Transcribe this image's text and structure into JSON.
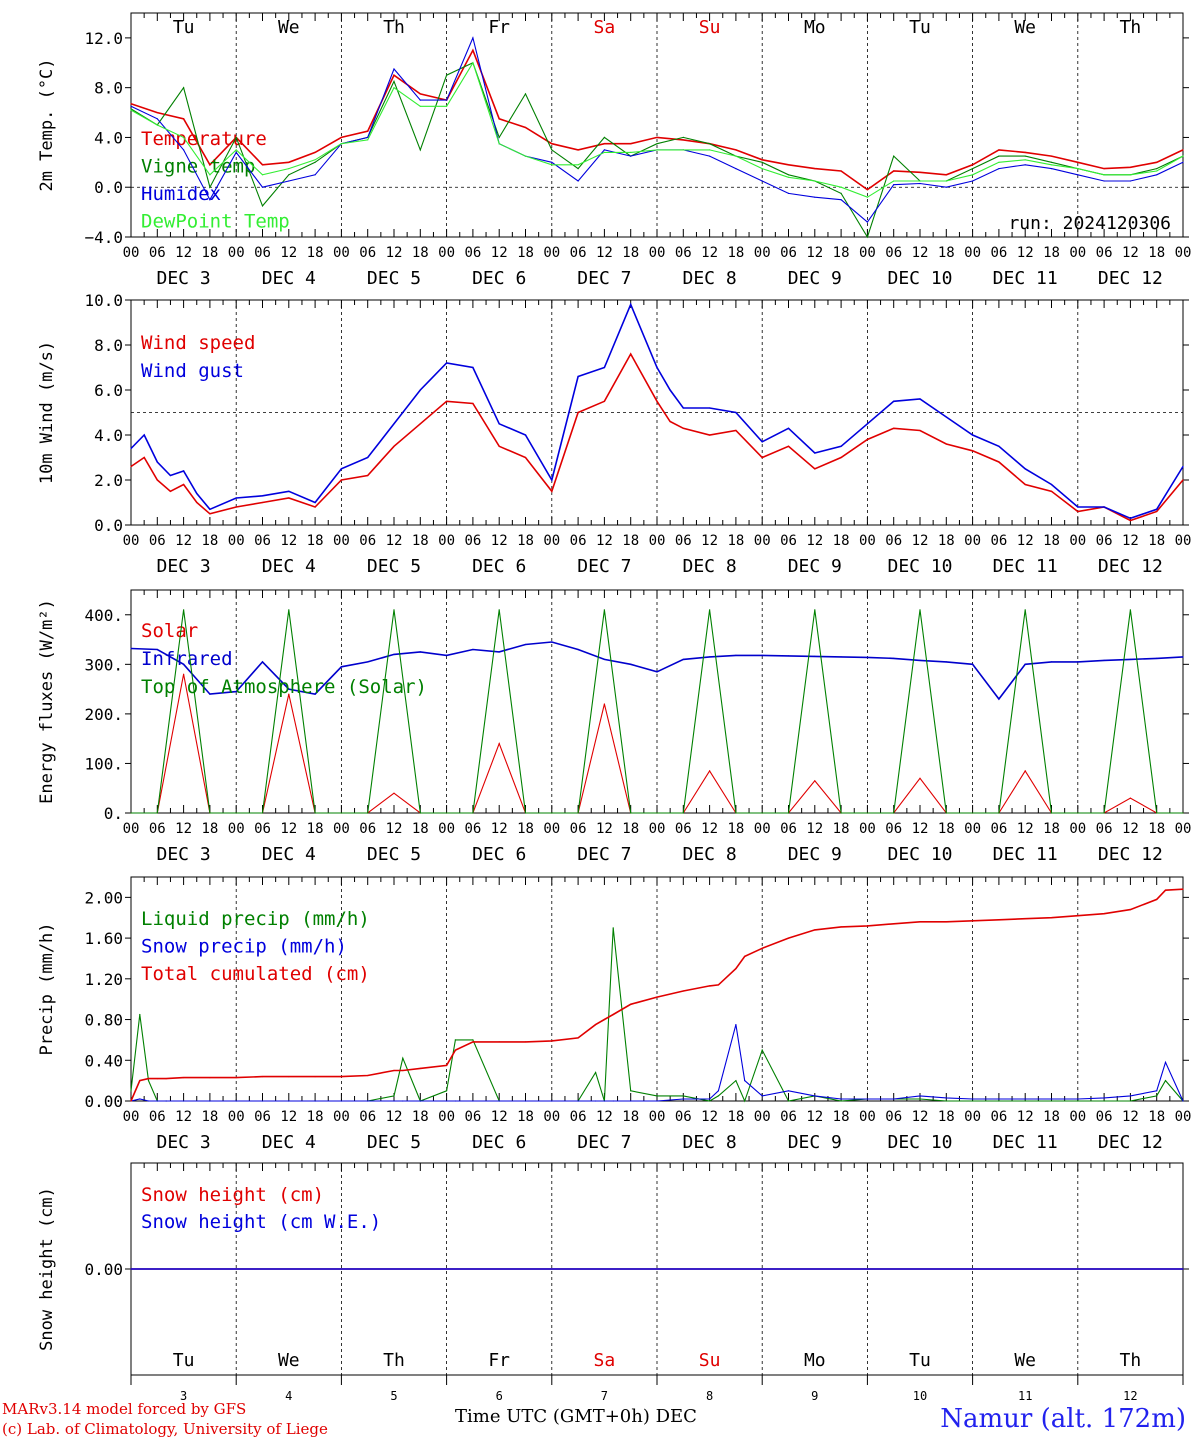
{
  "footer": {
    "model_line": "MARv3.14 model forced by GFS",
    "credit_line": "(c) Lab. of Climatology, University of Liege",
    "x_title": "Time UTC (GMT+0h)",
    "x_unit": "DEC",
    "location": "Namur (alt. 172m)"
  },
  "run_label": "run: 2024120306",
  "days": [
    "Tu",
    "We",
    "Th",
    "Fr",
    "Sa",
    "Su",
    "Mo",
    "Tu",
    "We",
    "Th"
  ],
  "weekend_color": "#e00000",
  "date_labels": [
    "DEC  3",
    "DEC  4",
    "DEC  5",
    "DEC  6",
    "DEC  7",
    "DEC  8",
    "DEC  9",
    "DEC 10",
    "DEC 11",
    "DEC 12"
  ],
  "day_numbers": [
    "3",
    "4",
    "5",
    "6",
    "7",
    "8",
    "9",
    "10",
    "11",
    "12"
  ],
  "hour_ticks": [
    "00",
    "06",
    "12",
    "18"
  ],
  "chart_data": [
    {
      "type": "line",
      "ylabel": "2m Temp. (°C)",
      "ylim": [
        -4,
        14
      ],
      "yticks": [
        -4,
        0,
        4,
        8,
        12
      ],
      "ytick_labels": [
        "−4.0",
        "0.0",
        "4.0",
        "8.0",
        "12.0"
      ],
      "ref_line": 0,
      "x_hours": [
        0,
        6,
        12,
        18,
        24,
        30,
        36,
        42,
        48,
        54,
        60,
        66,
        72,
        78,
        84,
        90,
        96,
        102,
        108,
        114,
        120,
        126,
        132,
        138,
        144,
        150,
        156,
        162,
        168,
        174,
        180,
        186,
        192,
        198,
        204,
        210,
        216,
        222,
        228,
        234,
        240
      ],
      "series": [
        {
          "name": "Temperature",
          "color": "#e00000",
          "values": [
            6.7,
            6.0,
            5.5,
            1.8,
            4.0,
            1.8,
            2.0,
            2.8,
            4.0,
            4.5,
            9.0,
            7.5,
            7.0,
            11.0,
            5.5,
            4.8,
            3.5,
            3.0,
            3.5,
            3.5,
            4.0,
            3.8,
            3.5,
            3.0,
            2.2,
            1.8,
            1.5,
            1.3,
            -0.2,
            1.3,
            1.2,
            1.0,
            1.8,
            3.0,
            2.8,
            2.5,
            2.0,
            1.5,
            1.6,
            2.0,
            3.0
          ]
        },
        {
          "name": "Vigne temp",
          "color": "#008000",
          "values": [
            6.3,
            5.0,
            8.0,
            0.0,
            4.0,
            -1.5,
            1.0,
            2.0,
            3.5,
            4.0,
            8.5,
            3.0,
            9.0,
            10.0,
            4.0,
            7.5,
            3.0,
            1.5,
            4.0,
            2.5,
            3.5,
            4.0,
            3.5,
            2.5,
            2.0,
            1.0,
            0.5,
            -0.5,
            -4.0,
            2.5,
            0.5,
            0.5,
            1.5,
            2.5,
            2.5,
            2.0,
            1.5,
            1.0,
            1.0,
            1.5,
            2.5
          ]
        },
        {
          "name": "Humidex",
          "color": "#0000dd",
          "values": [
            6.5,
            5.5,
            3.0,
            -1.0,
            2.8,
            0.0,
            0.5,
            1.0,
            3.5,
            4.0,
            9.5,
            7.0,
            7.0,
            12.0,
            3.5,
            2.5,
            2.0,
            0.5,
            3.0,
            2.5,
            3.0,
            3.0,
            2.5,
            1.5,
            0.5,
            -0.5,
            -0.8,
            -1.0,
            -2.8,
            0.2,
            0.3,
            0.0,
            0.5,
            1.5,
            1.8,
            1.5,
            1.0,
            0.5,
            0.5,
            1.0,
            2.0
          ]
        },
        {
          "name": "DewPoint Temp",
          "color": "#33ee33",
          "values": [
            6.2,
            5.0,
            4.0,
            1.0,
            3.0,
            1.0,
            1.5,
            2.2,
            3.5,
            3.8,
            8.0,
            6.5,
            6.5,
            10.0,
            3.5,
            2.5,
            1.8,
            1.8,
            2.8,
            2.8,
            3.0,
            3.0,
            3.0,
            2.5,
            1.5,
            0.8,
            0.5,
            0.0,
            -0.8,
            0.5,
            0.5,
            0.5,
            1.0,
            2.0,
            2.2,
            1.8,
            1.5,
            1.0,
            1.0,
            1.3,
            2.5
          ]
        }
      ]
    },
    {
      "type": "line",
      "ylabel": "10m Wind (m/s)",
      "ylim": [
        0,
        10
      ],
      "yticks": [
        0,
        2,
        4,
        6,
        8,
        10
      ],
      "ytick_labels": [
        "0.0",
        "2.0",
        "4.0",
        "6.0",
        "8.0",
        "10.0"
      ],
      "ref_line": 5,
      "x_hours": [
        0,
        3,
        6,
        9,
        12,
        15,
        18,
        24,
        30,
        36,
        42,
        48,
        54,
        60,
        66,
        72,
        78,
        84,
        90,
        96,
        102,
        108,
        114,
        120,
        123,
        126,
        132,
        138,
        144,
        150,
        156,
        162,
        168,
        174,
        180,
        186,
        192,
        198,
        204,
        210,
        216,
        222,
        228,
        234,
        240
      ],
      "series": [
        {
          "name": "Wind speed",
          "color": "#e00000",
          "values": [
            2.6,
            3.0,
            2.0,
            1.5,
            1.8,
            1.0,
            0.5,
            0.8,
            1.0,
            1.2,
            0.8,
            2.0,
            2.2,
            3.5,
            4.5,
            5.5,
            5.4,
            3.5,
            3.0,
            1.5,
            5.0,
            5.5,
            7.6,
            5.5,
            4.6,
            4.3,
            4.0,
            4.2,
            3.0,
            3.5,
            2.5,
            3.0,
            3.8,
            4.3,
            4.2,
            3.6,
            3.3,
            2.8,
            1.8,
            1.5,
            0.6,
            0.8,
            0.2,
            0.6,
            2.0
          ]
        },
        {
          "name": "Wind gust",
          "color": "#0000dd",
          "values": [
            3.4,
            4.0,
            2.8,
            2.2,
            2.4,
            1.4,
            0.7,
            1.2,
            1.3,
            1.5,
            1.0,
            2.5,
            3.0,
            4.5,
            6.0,
            7.2,
            7.0,
            4.5,
            4.0,
            2.0,
            6.6,
            7.0,
            9.8,
            7.0,
            6.0,
            5.2,
            5.2,
            5.0,
            3.7,
            4.3,
            3.2,
            3.5,
            4.5,
            5.5,
            5.6,
            4.8,
            4.0,
            3.5,
            2.5,
            1.8,
            0.8,
            0.8,
            0.3,
            0.7,
            2.6
          ]
        }
      ]
    },
    {
      "type": "line",
      "ylabel": "Energy fluxes (W/m²)",
      "ylim": [
        0,
        450
      ],
      "yticks": [
        0,
        100,
        200,
        300,
        400
      ],
      "ytick_labels": [
        "0.",
        "100.",
        "200.",
        "300.",
        "400."
      ],
      "solar_peaks": [
        280,
        240,
        40,
        140,
        220,
        85,
        65,
        70,
        85,
        30
      ],
      "toa_peak": 410,
      "x_hours": [
        0,
        6,
        12,
        18,
        24,
        30,
        36,
        42,
        48,
        54,
        60,
        66,
        72,
        78,
        84,
        90,
        96,
        102,
        108,
        114,
        120,
        126,
        132,
        138,
        144,
        150,
        156,
        162,
        168,
        174,
        180,
        186,
        192,
        198,
        204,
        210,
        216,
        222,
        228,
        234,
        240
      ],
      "series": [
        {
          "name": "Solar",
          "color": "#e00000",
          "values": [
            0,
            0,
            280,
            0,
            0,
            0,
            240,
            0,
            0,
            0,
            40,
            0,
            0,
            0,
            140,
            0,
            0,
            0,
            220,
            0,
            0,
            0,
            85,
            0,
            0,
            0,
            65,
            0,
            0,
            0,
            70,
            0,
            0,
            0,
            85,
            0,
            0,
            0,
            30,
            0,
            0
          ]
        },
        {
          "name": "Infrared",
          "color": "#0000cc",
          "values": [
            332,
            330,
            300,
            240,
            245,
            305,
            250,
            240,
            295,
            305,
            320,
            325,
            318,
            330,
            325,
            340,
            345,
            330,
            310,
            300,
            285,
            310,
            315,
            318,
            318,
            317,
            316,
            315,
            314,
            312,
            308,
            305,
            300,
            230,
            300,
            305,
            305,
            308,
            310,
            312,
            315
          ]
        },
        {
          "name": "Top of Atmosphere (Solar)",
          "color": "#008000",
          "values": [
            0,
            0,
            410,
            0,
            0,
            0,
            410,
            0,
            0,
            0,
            410,
            0,
            0,
            0,
            410,
            0,
            0,
            0,
            410,
            0,
            0,
            0,
            410,
            0,
            0,
            0,
            410,
            0,
            0,
            0,
            410,
            0,
            0,
            0,
            410,
            0,
            0,
            0,
            410,
            0,
            0
          ]
        }
      ]
    },
    {
      "type": "line",
      "ylabel": "Precip (mm/h)",
      "ylim": [
        0,
        2.2
      ],
      "yticks": [
        0,
        0.4,
        0.8,
        1.2,
        1.6,
        2.0
      ],
      "ytick_labels": [
        "0.00",
        "0.40",
        "0.80",
        "1.20",
        "1.60",
        "2.00"
      ],
      "x_hours": [
        0,
        2,
        4,
        6,
        8,
        12,
        18,
        24,
        30,
        36,
        42,
        48,
        54,
        60,
        62,
        66,
        72,
        74,
        78,
        84,
        90,
        96,
        102,
        106,
        108,
        110,
        114,
        120,
        126,
        132,
        134,
        138,
        140,
        144,
        150,
        156,
        162,
        168,
        174,
        180,
        186,
        192,
        198,
        204,
        210,
        216,
        222,
        228,
        234,
        236,
        240
      ],
      "series": [
        {
          "name": "Liquid precip (mm/h)",
          "color": "#008000",
          "values": [
            0.1,
            0.85,
            0.2,
            0,
            0,
            0,
            0,
            0,
            0,
            0,
            0,
            0,
            0,
            0.05,
            0.42,
            0,
            0.1,
            0.6,
            0.6,
            0,
            0,
            0,
            0,
            0.28,
            0,
            1.7,
            0.1,
            0.05,
            0.05,
            0,
            0.05,
            0.2,
            0,
            0.5,
            0,
            0.05,
            0,
            0.02,
            0.02,
            0.02,
            0,
            0,
            0,
            0,
            0,
            0,
            0,
            0,
            0.05,
            0.2,
            0
          ]
        },
        {
          "name": "Snow precip (mm/h)",
          "color": "#0000dd",
          "values": [
            0,
            0.02,
            0,
            0,
            0,
            0,
            0,
            0,
            0,
            0,
            0,
            0,
            0,
            0,
            0,
            0,
            0,
            0,
            0,
            0,
            0,
            0,
            0,
            0,
            0,
            0,
            0,
            0,
            0.02,
            0.02,
            0.1,
            0.75,
            0.2,
            0.05,
            0.1,
            0.05,
            0.02,
            0.02,
            0.02,
            0.05,
            0.03,
            0.02,
            0.02,
            0.02,
            0.02,
            0.02,
            0.03,
            0.05,
            0.1,
            0.38,
            0
          ]
        },
        {
          "name": "Total cumulated (cm)",
          "color": "#e00000",
          "values": [
            0,
            0.2,
            0.22,
            0.22,
            0.22,
            0.23,
            0.23,
            0.23,
            0.24,
            0.24,
            0.24,
            0.24,
            0.25,
            0.3,
            0.3,
            0.32,
            0.35,
            0.5,
            0.58,
            0.58,
            0.58,
            0.59,
            0.62,
            0.75,
            0.8,
            0.85,
            0.95,
            1.02,
            1.08,
            1.13,
            1.14,
            1.3,
            1.42,
            1.5,
            1.6,
            1.68,
            1.71,
            1.72,
            1.74,
            1.76,
            1.76,
            1.77,
            1.78,
            1.79,
            1.8,
            1.82,
            1.84,
            1.88,
            1.98,
            2.07,
            2.08
          ]
        }
      ]
    },
    {
      "type": "line",
      "ylabel": "Snow height (cm)",
      "ylim": [
        -1,
        1
      ],
      "yticks": [
        0
      ],
      "ytick_labels": [
        "0.00"
      ],
      "x_hours": [
        0,
        240
      ],
      "series": [
        {
          "name": "Snow height (cm)",
          "color": "#e00000",
          "values": [
            0,
            0
          ]
        },
        {
          "name": "Snow height (cm W.E.)",
          "color": "#0000dd",
          "values": [
            0,
            0
          ]
        }
      ]
    }
  ]
}
